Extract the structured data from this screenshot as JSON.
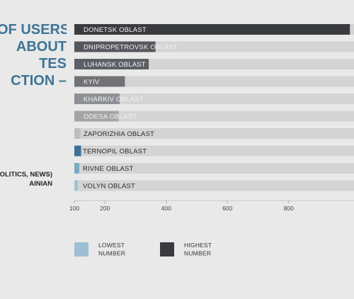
{
  "title_lines": [
    "OF USERS",
    "ABOUT",
    "TES",
    "CTION –"
  ],
  "subtitle_lines": [
    "OLITICS, NEWS)",
    "AINIAN"
  ],
  "chart_data": {
    "type": "bar",
    "orientation": "horizontal",
    "categories": [
      "DONETSK OBLAST",
      "DNIPROPETROVSK OBLAST",
      "LUHANSK OBLAST",
      "KYIV",
      "KHARKIV OBLAST",
      "ODESA OBLAST",
      "ZAPORIZHIA OBLAST",
      "TERNOPIL OBLAST",
      "RIVNE OBLAST",
      "VOLYN OBLAST"
    ],
    "values": [
      1000,
      365,
      343,
      265,
      248,
      245,
      120,
      122,
      116,
      111
    ],
    "colors": [
      "#3a3b3e",
      "#56575d",
      "#5d5f67",
      "#707276",
      "#8d9094",
      "#a3a5a7",
      "#bdbdbd",
      "#3d7096",
      "#7aa9c4",
      "#a0c1d1"
    ],
    "track_color": "#d3d4d3",
    "xticks": [
      100,
      200,
      400,
      600,
      800
    ],
    "xlim": [
      100,
      1000
    ],
    "legend": [
      {
        "label_lines": [
          "LOWEST",
          "NUMBER"
        ],
        "color": "#9cbfd3"
      },
      {
        "label_lines": [
          "HIGHEST",
          "NUMBER"
        ],
        "color": "#3a3b3e"
      }
    ]
  }
}
